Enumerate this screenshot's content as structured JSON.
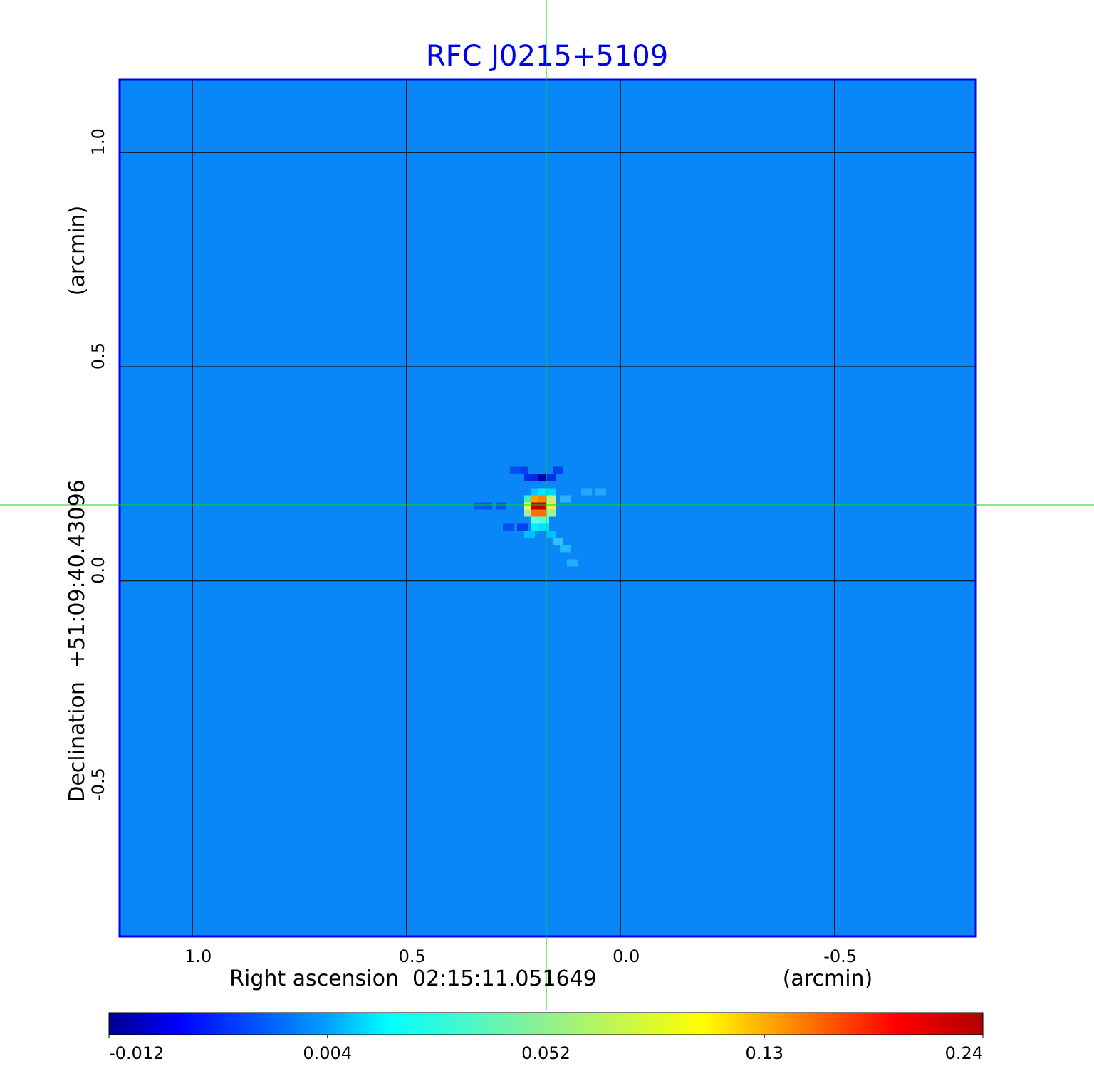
{
  "chart_data": {
    "type": "heatmap",
    "title": "RFC J0215+5109",
    "xlabel": "Right ascension  02:15:11.051649",
    "xunit": "(arcmin)",
    "ylabel": "Declination  +51:09:40.43096",
    "yunit": "(arcmin)",
    "x_ticks": [
      "1.0",
      "0.5",
      "0.0",
      "-0.5"
    ],
    "x_tick_values": [
      1.0,
      0.5,
      0.0,
      -0.5
    ],
    "y_ticks": [
      "1.0",
      "0.5",
      "0.0",
      "-0.5"
    ],
    "y_tick_values": [
      1.0,
      0.5,
      0.0,
      -0.5
    ],
    "xlim": [
      1.17,
      -0.83
    ],
    "ylim": [
      -0.83,
      1.17
    ],
    "grid": true,
    "crosshair": {
      "x": 0.175,
      "y": 0.175
    },
    "colormap": "jet",
    "colorbar": {
      "ticks": [
        "-0.012",
        "0.004",
        "0.052",
        "0.13",
        "0.24"
      ],
      "placement": "bottom"
    },
    "peak_value": 0.24,
    "colors": {
      "title": "#0000ee",
      "frame": "#0000ee",
      "crosshair": "#00dd00",
      "background_level": "#0a87f6"
    }
  }
}
